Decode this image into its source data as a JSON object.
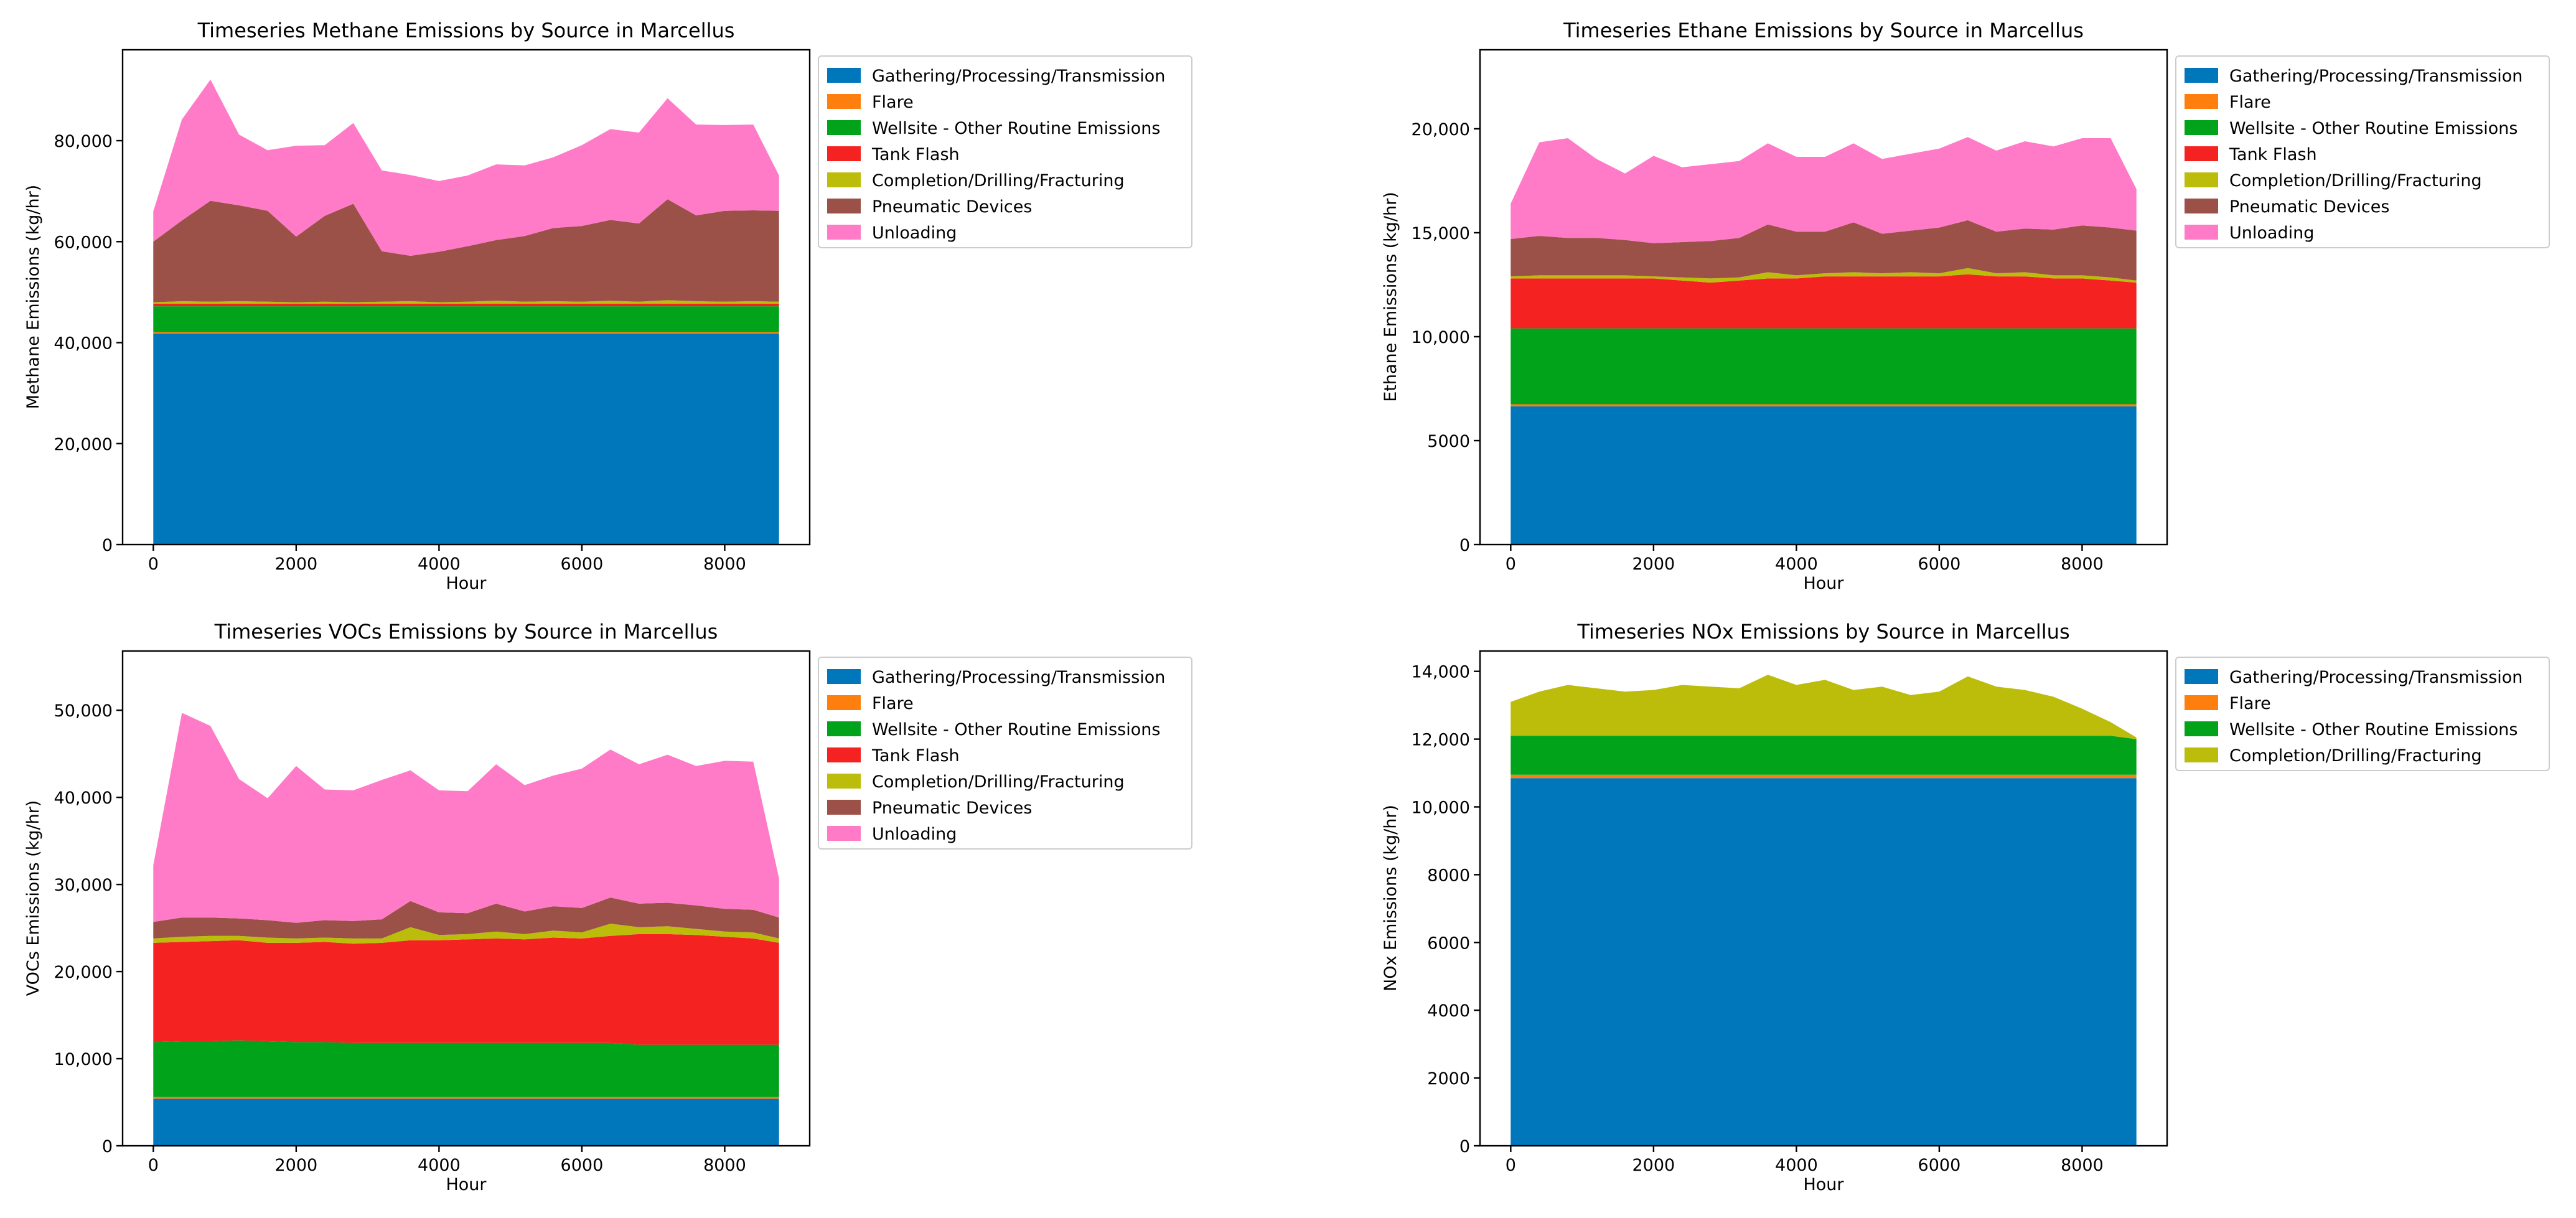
{
  "colors": {
    "Gathering/Processing/Transmission": "#0077bb",
    "Flare": "#ff7f0e",
    "Wellsite - Other Routine Emissions": "#00a31a",
    "Tank Flash": "#f52222",
    "Completion/Drilling/Fracturing": "#bcbd0a",
    "Pneumatic Devices": "#9b5148",
    "Unloading": "#ff7ac7"
  },
  "chart_data": [
    {
      "type": "area",
      "stacked": true,
      "title": "Timeseries Methane Emissions by Source in Marcellus",
      "xlabel": "Hour",
      "ylabel": "Methane Emissions (kg/hr)",
      "xlim": [
        -430,
        9190
      ],
      "ylim": [
        0,
        98000
      ],
      "xticks": [
        0,
        2000,
        4000,
        6000,
        8000
      ],
      "xtick_labels": [
        "0",
        "2000",
        "4000",
        "6000",
        "8000"
      ],
      "yticks": [
        0,
        20000,
        40000,
        60000,
        80000
      ],
      "ytick_labels": [
        "0",
        "20,000",
        "40,000",
        "60,000",
        "80,000"
      ],
      "legend_location": "outside upper-right",
      "x": [
        0,
        400,
        800,
        1200,
        1600,
        2000,
        2400,
        2800,
        3200,
        3600,
        4000,
        4400,
        4800,
        5200,
        5600,
        6000,
        6400,
        6800,
        7200,
        7600,
        8000,
        8400,
        8760
      ],
      "series": [
        {
          "name": "Gathering/Processing/Transmission",
          "values": [
            41800,
            41800,
            41800,
            41800,
            41800,
            41800,
            41800,
            41800,
            41800,
            41800,
            41800,
            41800,
            41800,
            41800,
            41800,
            41800,
            41800,
            41800,
            41800,
            41800,
            41800,
            41800,
            41800
          ]
        },
        {
          "name": "Flare",
          "values": [
            300,
            300,
            300,
            300,
            300,
            300,
            300,
            300,
            300,
            300,
            300,
            300,
            300,
            300,
            300,
            300,
            300,
            300,
            300,
            300,
            300,
            300,
            300
          ]
        },
        {
          "name": "Wellsite - Other Routine Emissions",
          "values": [
            5100,
            5100,
            5100,
            5100,
            5100,
            5100,
            5100,
            5100,
            5100,
            5100,
            5100,
            5100,
            5100,
            5100,
            5100,
            5100,
            5100,
            5100,
            5100,
            5100,
            5100,
            5100,
            5100
          ]
        },
        {
          "name": "Tank Flash",
          "values": [
            500,
            500,
            500,
            500,
            500,
            500,
            500,
            500,
            500,
            500,
            500,
            500,
            500,
            500,
            500,
            500,
            500,
            500,
            500,
            500,
            500,
            500,
            500
          ]
        },
        {
          "name": "Completion/Drilling/Fracturing",
          "values": [
            300,
            500,
            400,
            500,
            400,
            300,
            400,
            300,
            400,
            500,
            300,
            400,
            600,
            400,
            500,
            400,
            600,
            400,
            700,
            500,
            400,
            500,
            400
          ]
        },
        {
          "name": "Pneumatic Devices",
          "values": [
            12000,
            16000,
            20000,
            19000,
            18000,
            13000,
            17000,
            19500,
            10000,
            9000,
            10000,
            11000,
            12000,
            13000,
            14500,
            15000,
            16000,
            15500,
            20000,
            17000,
            18000,
            18000,
            18000
          ]
        },
        {
          "name": "Unloading",
          "values": [
            6000,
            20000,
            24000,
            14000,
            12000,
            18000,
            14000,
            16000,
            16000,
            16000,
            14000,
            14000,
            15000,
            14000,
            14000,
            16000,
            18000,
            18000,
            20000,
            18000,
            17000,
            17000,
            7000
          ]
        }
      ]
    },
    {
      "type": "area",
      "stacked": true,
      "title": "Timeseries Ethane Emissions by Source in Marcellus",
      "xlabel": "Hour",
      "ylabel": "Ethane Emissions (kg/hr)",
      "xlim": [
        -430,
        9190
      ],
      "ylim": [
        0,
        23800
      ],
      "xticks": [
        0,
        2000,
        4000,
        6000,
        8000
      ],
      "xtick_labels": [
        "0",
        "2000",
        "4000",
        "6000",
        "8000"
      ],
      "yticks": [
        0,
        5000,
        10000,
        15000,
        20000
      ],
      "ytick_labels": [
        "0",
        "5000",
        "10,000",
        "15,000",
        "20,000"
      ],
      "legend_location": "outside upper-right",
      "x": [
        0,
        400,
        800,
        1200,
        1600,
        2000,
        2400,
        2800,
        3200,
        3600,
        4000,
        4400,
        4800,
        5200,
        5600,
        6000,
        6400,
        6800,
        7200,
        7600,
        8000,
        8400,
        8760
      ],
      "series": [
        {
          "name": "Gathering/Processing/Transmission",
          "values": [
            6650,
            6650,
            6650,
            6650,
            6650,
            6650,
            6650,
            6650,
            6650,
            6650,
            6650,
            6650,
            6650,
            6650,
            6650,
            6650,
            6650,
            6650,
            6650,
            6650,
            6650,
            6650,
            6650
          ]
        },
        {
          "name": "Flare",
          "values": [
            100,
            100,
            100,
            100,
            100,
            100,
            100,
            100,
            100,
            100,
            100,
            100,
            100,
            100,
            100,
            100,
            100,
            100,
            100,
            100,
            100,
            100,
            100
          ]
        },
        {
          "name": "Wellsite - Other Routine Emissions",
          "values": [
            3650,
            3650,
            3650,
            3650,
            3650,
            3650,
            3650,
            3650,
            3650,
            3650,
            3650,
            3650,
            3650,
            3650,
            3650,
            3650,
            3650,
            3650,
            3650,
            3650,
            3650,
            3650,
            3650
          ]
        },
        {
          "name": "Tank Flash",
          "values": [
            2400,
            2400,
            2400,
            2400,
            2400,
            2400,
            2300,
            2200,
            2300,
            2400,
            2400,
            2500,
            2500,
            2500,
            2500,
            2500,
            2600,
            2500,
            2500,
            2400,
            2400,
            2300,
            2200
          ]
        },
        {
          "name": "Completion/Drilling/Fracturing",
          "values": [
            100,
            150,
            150,
            150,
            150,
            100,
            150,
            200,
            150,
            300,
            150,
            150,
            200,
            150,
            200,
            150,
            300,
            150,
            200,
            150,
            150,
            150,
            100
          ]
        },
        {
          "name": "Pneumatic Devices",
          "values": [
            1800,
            1900,
            1800,
            1800,
            1700,
            1600,
            1700,
            1800,
            1900,
            2300,
            2100,
            2000,
            2400,
            1900,
            2000,
            2200,
            2300,
            2000,
            2100,
            2200,
            2400,
            2400,
            2400
          ]
        },
        {
          "name": "Unloading",
          "values": [
            1700,
            4500,
            4800,
            3800,
            3200,
            4200,
            3600,
            3700,
            3700,
            3900,
            3600,
            3600,
            3800,
            3600,
            3700,
            3800,
            4000,
            3900,
            4200,
            4000,
            4200,
            4300,
            2000
          ]
        }
      ]
    },
    {
      "type": "area",
      "stacked": true,
      "title": "Timeseries VOCs Emissions by Source in Marcellus",
      "xlabel": "Hour",
      "ylabel": "VOCs Emissions (kg/hr)",
      "xlim": [
        -430,
        9190
      ],
      "ylim": [
        0,
        56800
      ],
      "xticks": [
        0,
        2000,
        4000,
        6000,
        8000
      ],
      "xtick_labels": [
        "0",
        "2000",
        "4000",
        "6000",
        "8000"
      ],
      "yticks": [
        0,
        10000,
        20000,
        30000,
        40000,
        50000
      ],
      "ytick_labels": [
        "0",
        "10,000",
        "20,000",
        "30,000",
        "40,000",
        "50,000"
      ],
      "legend_location": "outside upper-right",
      "x": [
        0,
        400,
        800,
        1200,
        1600,
        2000,
        2400,
        2800,
        3200,
        3600,
        4000,
        4400,
        4800,
        5200,
        5600,
        6000,
        6400,
        6800,
        7200,
        7600,
        8000,
        8400,
        8760
      ],
      "series": [
        {
          "name": "Gathering/Processing/Transmission",
          "values": [
            5400,
            5400,
            5400,
            5400,
            5400,
            5400,
            5400,
            5400,
            5400,
            5400,
            5400,
            5400,
            5400,
            5400,
            5400,
            5400,
            5400,
            5400,
            5400,
            5400,
            5400,
            5400,
            5400
          ]
        },
        {
          "name": "Flare",
          "values": [
            200,
            200,
            200,
            200,
            200,
            200,
            200,
            200,
            200,
            200,
            200,
            200,
            200,
            200,
            200,
            200,
            200,
            200,
            200,
            200,
            200,
            200,
            200
          ]
        },
        {
          "name": "Wellsite - Other Routine Emissions",
          "values": [
            6300,
            6400,
            6400,
            6500,
            6400,
            6300,
            6300,
            6200,
            6200,
            6200,
            6200,
            6200,
            6200,
            6200,
            6200,
            6200,
            6200,
            6000,
            6000,
            6000,
            6000,
            6000,
            6000
          ]
        },
        {
          "name": "Tank Flash",
          "values": [
            11400,
            11400,
            11500,
            11500,
            11300,
            11400,
            11500,
            11400,
            11500,
            11800,
            11800,
            11900,
            12000,
            11900,
            12100,
            12000,
            12300,
            12700,
            12700,
            12600,
            12400,
            12200,
            11700
          ]
        },
        {
          "name": "Completion/Drilling/Fracturing",
          "values": [
            500,
            600,
            600,
            500,
            600,
            500,
            500,
            600,
            500,
            1500,
            600,
            600,
            800,
            600,
            800,
            700,
            1400,
            800,
            900,
            700,
            600,
            700,
            500
          ]
        },
        {
          "name": "Pneumatic Devices",
          "values": [
            1900,
            2200,
            2100,
            2000,
            2000,
            1800,
            2000,
            2000,
            2200,
            3000,
            2600,
            2400,
            3200,
            2600,
            2800,
            2800,
            3000,
            2700,
            2700,
            2700,
            2600,
            2600,
            2400
          ]
        },
        {
          "name": "Unloading",
          "values": [
            6500,
            23500,
            22000,
            16000,
            14000,
            18000,
            15000,
            15000,
            16000,
            15000,
            14000,
            14000,
            16000,
            14500,
            15000,
            16000,
            17000,
            16000,
            17000,
            16000,
            17000,
            17000,
            4500
          ]
        }
      ]
    },
    {
      "type": "area",
      "stacked": true,
      "title": "Timeseries NOx Emissions by Source in Marcellus",
      "xlabel": "Hour",
      "ylabel": "NOx Emissions (kg/hr)",
      "xlim": [
        -430,
        9190
      ],
      "ylim": [
        0,
        14600
      ],
      "xticks": [
        0,
        2000,
        4000,
        6000,
        8000
      ],
      "xtick_labels": [
        "0",
        "2000",
        "4000",
        "6000",
        "8000"
      ],
      "yticks": [
        0,
        2000,
        4000,
        6000,
        8000,
        10000,
        12000,
        14000
      ],
      "ytick_labels": [
        "0",
        "2000",
        "4000",
        "6000",
        "8000",
        "10,000",
        "12,000",
        "14,000"
      ],
      "legend_location": "outside upper-right",
      "x": [
        0,
        400,
        800,
        1200,
        1600,
        2000,
        2400,
        2800,
        3200,
        3600,
        4000,
        4400,
        4800,
        5200,
        5600,
        6000,
        6400,
        6800,
        7200,
        7600,
        8000,
        8400,
        8760
      ],
      "series": [
        {
          "name": "Gathering/Processing/Transmission",
          "values": [
            10850,
            10850,
            10850,
            10850,
            10850,
            10850,
            10850,
            10850,
            10850,
            10850,
            10850,
            10850,
            10850,
            10850,
            10850,
            10850,
            10850,
            10850,
            10850,
            10850,
            10850,
            10850,
            10850
          ]
        },
        {
          "name": "Flare",
          "values": [
            100,
            100,
            100,
            100,
            100,
            100,
            100,
            100,
            100,
            100,
            100,
            100,
            100,
            100,
            100,
            100,
            100,
            100,
            100,
            100,
            100,
            100,
            100
          ]
        },
        {
          "name": "Wellsite - Other Routine Emissions",
          "values": [
            1150,
            1150,
            1150,
            1150,
            1150,
            1150,
            1150,
            1150,
            1150,
            1150,
            1150,
            1150,
            1150,
            1150,
            1150,
            1150,
            1150,
            1150,
            1150,
            1150,
            1150,
            1150,
            1050
          ]
        },
        {
          "name": "Completion/Drilling/Fracturing",
          "values": [
            1000,
            1300,
            1500,
            1400,
            1300,
            1350,
            1500,
            1450,
            1400,
            1800,
            1500,
            1650,
            1350,
            1450,
            1200,
            1300,
            1750,
            1450,
            1350,
            1150,
            800,
            400,
            50
          ]
        }
      ]
    }
  ]
}
